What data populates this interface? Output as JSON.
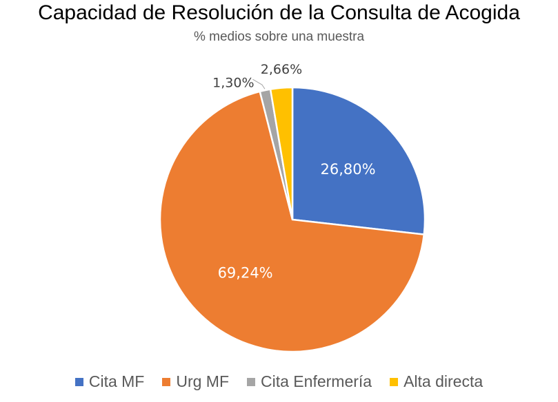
{
  "chart_data": {
    "type": "pie",
    "title": "Capacidad de Resolución de la Consulta de Acogida",
    "subtitle": "% medios sobre una muestra",
    "categories": [
      "Cita MF",
      "Urg MF",
      "Cita Enfermería",
      "Alta directa"
    ],
    "values": [
      26.8,
      69.24,
      1.3,
      2.66
    ],
    "data_labels": [
      "26,80%",
      "69,24%",
      "1,30%",
      "2,66%"
    ],
    "colors": [
      "#4472C4",
      "#ED7D31",
      "#A5A5A5",
      "#FFC000"
    ],
    "start_angle_deg": 0,
    "direction": "clockwise",
    "legend_position": "bottom"
  }
}
